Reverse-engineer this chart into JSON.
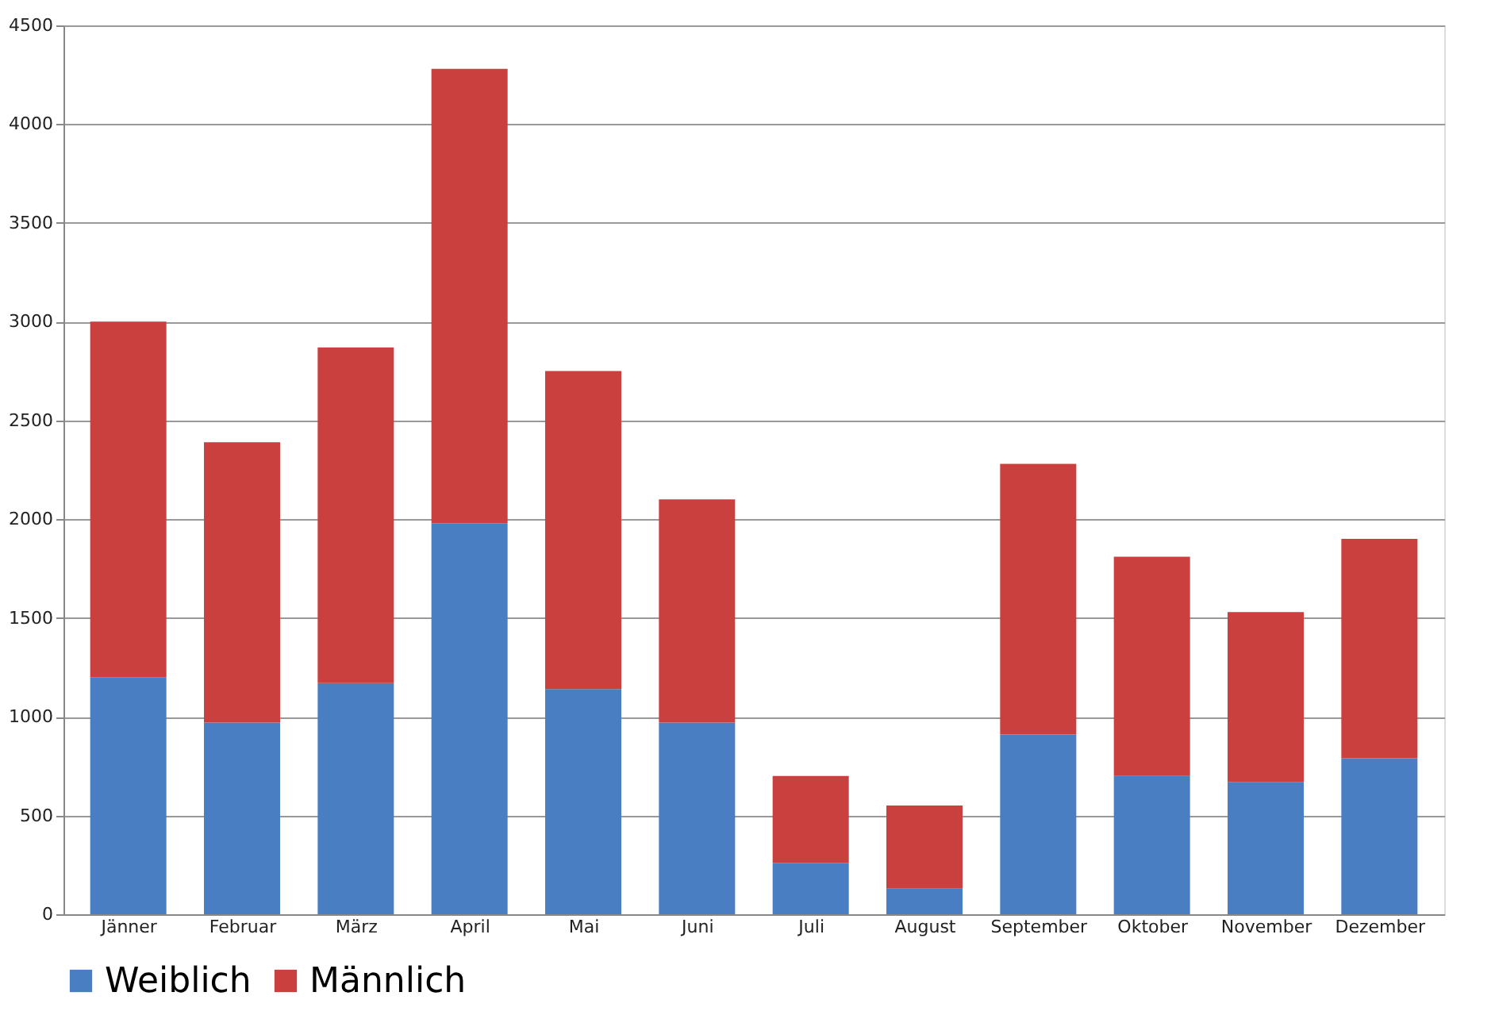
{
  "chart_data": {
    "type": "bar",
    "stacked": true,
    "categories": [
      "Jänner",
      "Februar",
      "März",
      "April",
      "Mai",
      "Juni",
      "Juli",
      "August",
      "September",
      "Oktober",
      "November",
      "Dezember"
    ],
    "series": [
      {
        "name": "Weiblich",
        "color": "#4a7ec2",
        "values": [
          1200,
          970,
          1170,
          1980,
          1140,
          970,
          260,
          130,
          910,
          700,
          670,
          790
        ]
      },
      {
        "name": "Männlich",
        "color": "#c9403f",
        "values": [
          1800,
          1420,
          1700,
          2300,
          1610,
          1130,
          440,
          420,
          1370,
          1110,
          860,
          1110
        ]
      }
    ],
    "ylim": [
      0,
      4500
    ],
    "yticks": [
      0,
      500,
      1000,
      1500,
      2000,
      2500,
      3000,
      3500,
      4000,
      4500
    ],
    "grid": "y",
    "legend": "bottom"
  }
}
